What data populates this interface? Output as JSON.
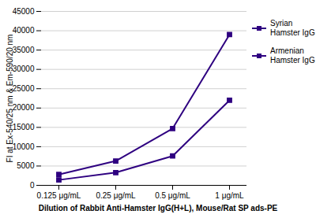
{
  "chart_data": {
    "type": "line",
    "categories": [
      "0.125 μg/mL",
      "0.25 μg/mL",
      "0.5 μg/mL",
      "1 μg/mL"
    ],
    "series": [
      {
        "name": "Syrian\nHamster IgG",
        "color": "#2E0080",
        "marker": "square",
        "values": [
          2800,
          6300,
          14700,
          39000
        ]
      },
      {
        "name": "Armenian\nHamster IgG",
        "color": "#2E0080",
        "marker": "square",
        "values": [
          1400,
          3300,
          7600,
          22000
        ]
      }
    ],
    "xlabel": "Dilution of Rabbit Anti-Hamster IgG(H+L), Mouse/Rat SP ads-PE",
    "ylabel": "FI at Ex-540/25 nm & Em-590/20 nm",
    "ylim": [
      0,
      45000
    ],
    "yticks": [
      0,
      5000,
      10000,
      15000,
      20000,
      25000,
      30000,
      35000,
      40000,
      45000
    ],
    "grid": true,
    "legend": "right"
  }
}
